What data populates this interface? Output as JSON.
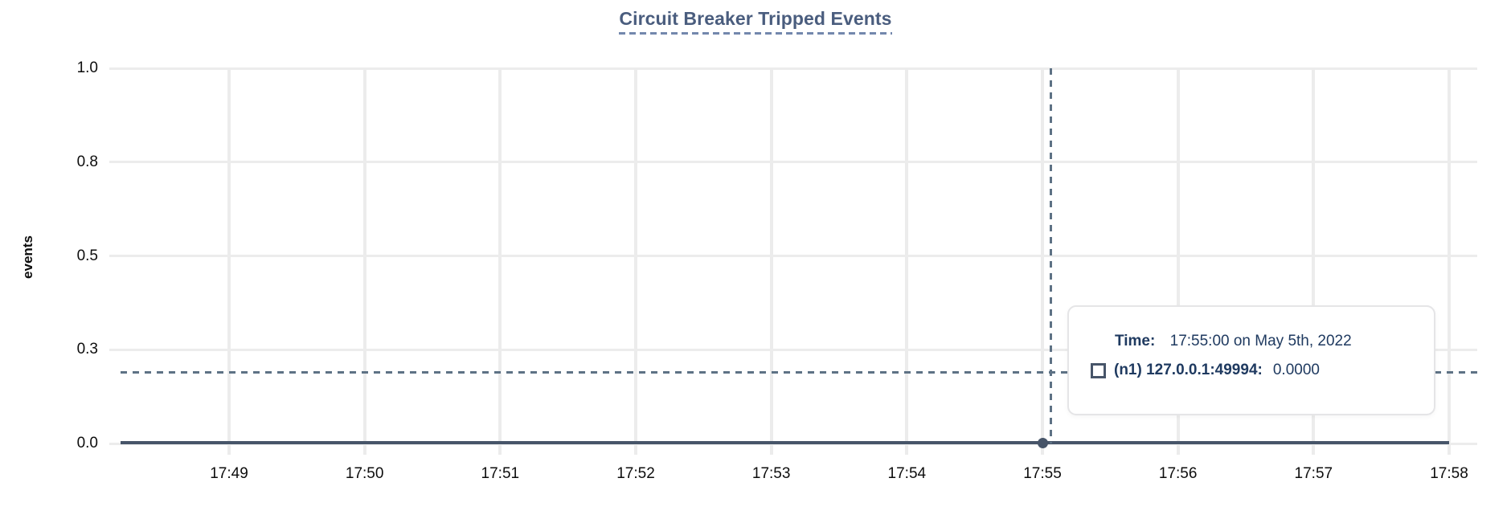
{
  "chart_data": {
    "type": "line",
    "title": "Circuit Breaker Tripped Events",
    "xlabel": "",
    "ylabel": "events",
    "x_tick_labels": [
      "17:49",
      "17:50",
      "17:51",
      "17:52",
      "17:53",
      "17:54",
      "17:55",
      "17:56",
      "17:57",
      "17:58"
    ],
    "y_tick_labels": [
      "1.0",
      "0.8",
      "0.5",
      "0.3",
      "0.0"
    ],
    "y_tick_values": [
      1.0,
      0.75,
      0.5,
      0.25,
      0.0
    ],
    "ylim": [
      0,
      1
    ],
    "grid": true,
    "legend_position": "tooltip",
    "series": [
      {
        "name": "(n1) 127.0.0.1:49994",
        "marker": "square",
        "x": [
          "17:49",
          "17:50",
          "17:51",
          "17:52",
          "17:53",
          "17:54",
          "17:55",
          "17:56",
          "17:57",
          "17:58"
        ],
        "values": [
          0,
          0,
          0,
          0,
          0,
          0,
          0,
          0,
          0,
          0
        ]
      }
    ],
    "hovered_point": {
      "x": "17:55",
      "value": 0.0
    }
  },
  "tooltip": {
    "time_label": "Time:",
    "time_value": "17:55:00 on May 5th, 2022",
    "series_label": "(n1) 127.0.0.1:49994:",
    "series_value": "0.0000"
  },
  "colors": {
    "title": "#4a5d7e",
    "title_underline": "#7388ad",
    "axis_text": "#0d0d0d",
    "grid": "#ececec",
    "series": "#475569",
    "cursor": "#5e7285",
    "tooltip_text": "#1f3a60",
    "tooltip_border": "#e5e5e7"
  }
}
